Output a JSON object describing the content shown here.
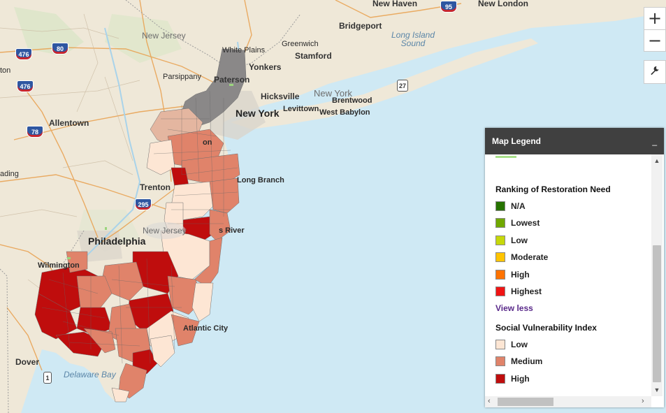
{
  "map": {
    "cities": [
      {
        "id": "new-haven",
        "name": "New Haven"
      },
      {
        "id": "new-london",
        "name": "New London"
      },
      {
        "id": "bridgeport",
        "name": "Bridgeport"
      },
      {
        "id": "white-plains",
        "name": "White Plains"
      },
      {
        "id": "greenwich",
        "name": "Greenwich"
      },
      {
        "id": "yonkers",
        "name": "Yonkers"
      },
      {
        "id": "stamford",
        "name": "Stamford"
      },
      {
        "id": "parsippany",
        "name": "Parsippany"
      },
      {
        "id": "paterson",
        "name": "Paterson"
      },
      {
        "id": "hicksville",
        "name": "Hicksville"
      },
      {
        "id": "new-york",
        "name": "New York"
      },
      {
        "id": "levittown",
        "name": "Levittown"
      },
      {
        "id": "west-babylon",
        "name": "West Babylon"
      },
      {
        "id": "brentwood",
        "name": "Brentwood"
      },
      {
        "id": "allentown",
        "name": "Allentown"
      },
      {
        "id": "reading",
        "name": "ading"
      },
      {
        "id": "trenton",
        "name": "Trenton"
      },
      {
        "id": "long-branch",
        "name": "Long Branch"
      },
      {
        "id": "toms-river",
        "name": "s River"
      },
      {
        "id": "philadelphia",
        "name": "Philadelphia"
      },
      {
        "id": "wilmington",
        "name": "Wilmington"
      },
      {
        "id": "atlantic-city",
        "name": "Atlantic City"
      },
      {
        "id": "dover",
        "name": "Dover"
      },
      {
        "id": "ton",
        "name": "ton"
      },
      {
        "id": "on",
        "name": "on"
      }
    ],
    "states": [
      {
        "id": "new-jersey-north",
        "name": "New Jersey"
      },
      {
        "id": "new-jersey-south",
        "name": "New Jersey"
      },
      {
        "id": "new-york-state",
        "name": "New York"
      }
    ],
    "water": [
      {
        "id": "long-island-sound",
        "name": "Long Island Sound"
      },
      {
        "id": "delaware-bay",
        "name": "Delaware Bay"
      }
    ],
    "shields": [
      {
        "id": "i95",
        "label": "95"
      },
      {
        "id": "i80",
        "label": "80"
      },
      {
        "id": "i476a",
        "label": "476"
      },
      {
        "id": "i476b",
        "label": "476"
      },
      {
        "id": "i78",
        "label": "78"
      },
      {
        "id": "i295",
        "label": "295"
      },
      {
        "id": "us27",
        "label": "27"
      },
      {
        "id": "us1",
        "label": "1"
      }
    ]
  },
  "controls": {
    "zoom_in": "+",
    "zoom_out": "−"
  },
  "legend": {
    "title": "Map Legend",
    "minimize": "_",
    "restoration": {
      "title": "Ranking of Restoration Need",
      "items": [
        {
          "label": "N/A",
          "color": "#267300"
        },
        {
          "label": "Lowest",
          "color": "#70a800"
        },
        {
          "label": "Low",
          "color": "#c6d80a"
        },
        {
          "label": "Moderate",
          "color": "#ffc400"
        },
        {
          "label": "High",
          "color": "#ff7300"
        },
        {
          "label": "Highest",
          "color": "#f01414"
        }
      ]
    },
    "view_less": "View less",
    "svi": {
      "title": "Social Vulnerability Index",
      "items": [
        {
          "label": "Low",
          "color": "#fde6d4"
        },
        {
          "label": "Medium",
          "color": "#e0836a"
        },
        {
          "label": "High",
          "color": "#bf0d0d"
        }
      ]
    },
    "top_swatch_color": "#a8e08a"
  }
}
